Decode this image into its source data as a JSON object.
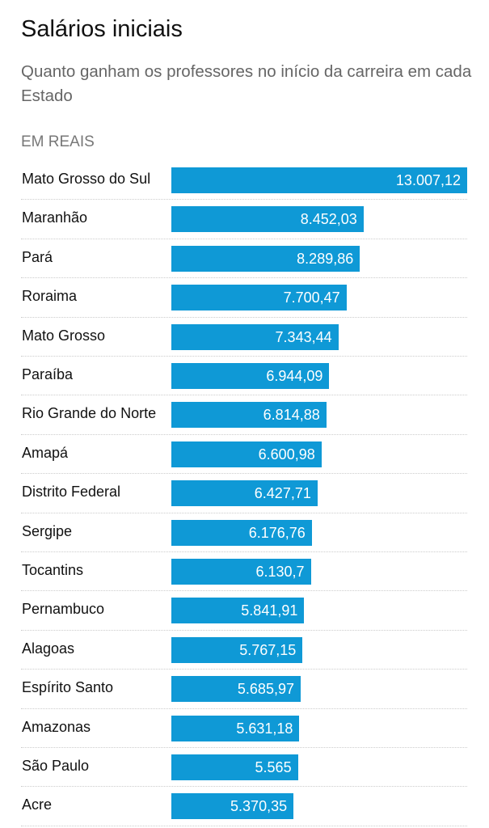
{
  "title": "Salários iniciais",
  "subtitle": "Quanto ganham os professores no início da carreira em cada Estado",
  "unit": "EM REAIS",
  "chart_data": {
    "type": "bar",
    "orientation": "horizontal",
    "bar_color": "#0f99d6",
    "categories": [
      "Mato Grosso do Sul",
      "Maranhão",
      "Pará",
      "Roraima",
      "Mato Grosso",
      "Paraíba",
      "Rio Grande do Norte",
      "Amapá",
      "Distrito Federal",
      "Sergipe",
      "Tocantins",
      "Pernambuco",
      "Alagoas",
      "Espírito Santo",
      "Amazonas",
      "São Paulo",
      "Acre"
    ],
    "values": [
      13007.12,
      8452.03,
      8289.86,
      7700.47,
      7343.44,
      6944.09,
      6814.88,
      6600.98,
      6427.71,
      6176.76,
      6130.7,
      5841.91,
      5767.15,
      5685.97,
      5631.18,
      5565,
      5370.35
    ],
    "labels": [
      "13.007,12",
      "8.452,03",
      "8.289,86",
      "7.700,47",
      "7.343,44",
      "6.944,09",
      "6.814,88",
      "6.600,98",
      "6.427,71",
      "6.176,76",
      "6.130,7",
      "5.841,91",
      "5.767,15",
      "5.685,97",
      "5.631,18",
      "5.565",
      "5.370,35"
    ]
  }
}
